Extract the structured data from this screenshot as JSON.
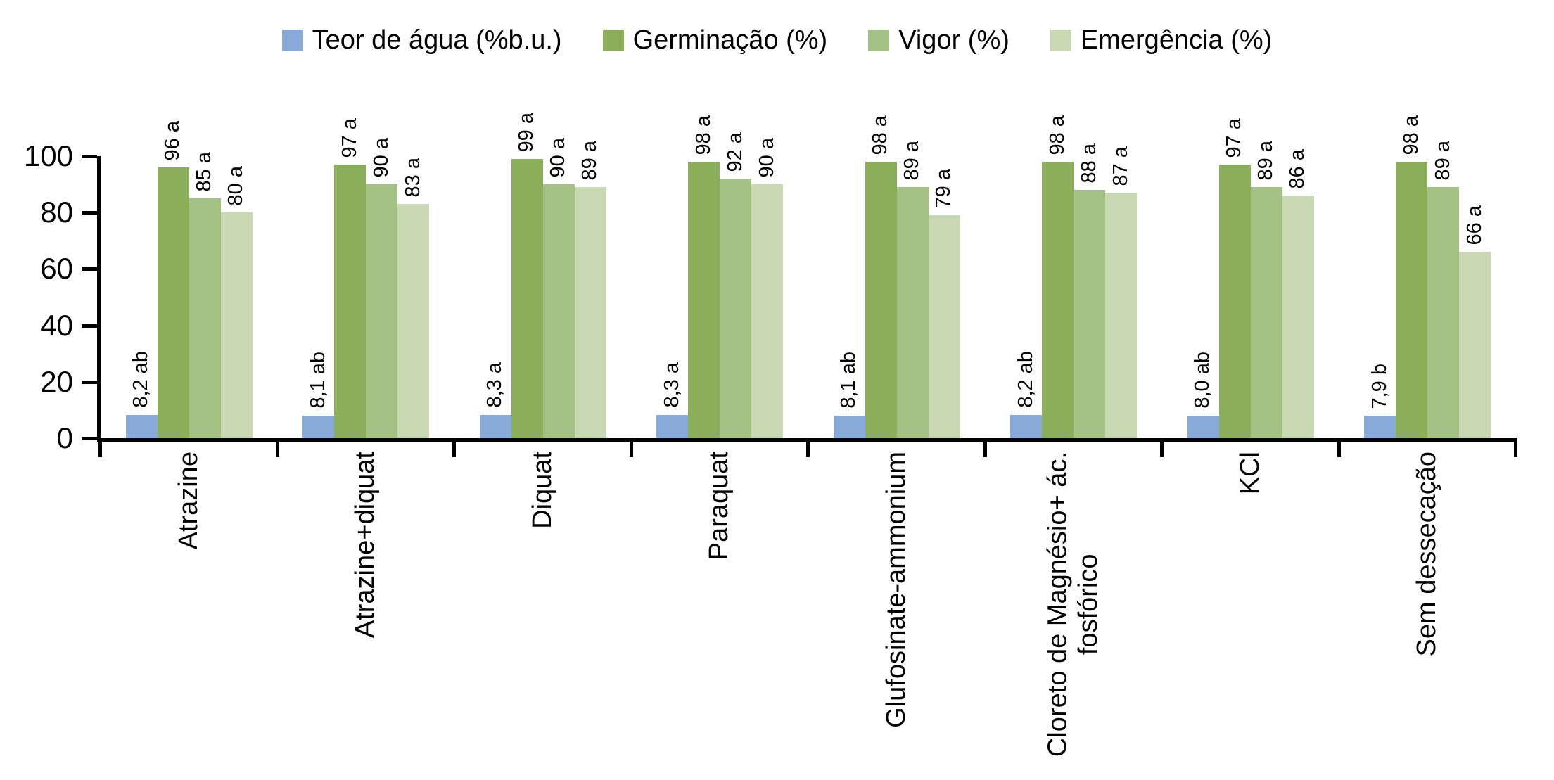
{
  "chart_data": {
    "type": "bar",
    "title": "",
    "xlabel": "",
    "ylabel": "",
    "ylim": [
      0,
      100
    ],
    "yticks": [
      0,
      20,
      40,
      60,
      80,
      100
    ],
    "grid": false,
    "legend_position": "top",
    "background_color": "#FFFFFF",
    "axis_color": "#000000",
    "categories": [
      "Atrazine",
      "Atrazine+diquat",
      "Diquat",
      "Paraquat",
      "Glufosinate-ammonium",
      "Cloreto de Magnésio+ ác. fosfórico",
      "KCl",
      "Sem dessecação"
    ],
    "categories_display": [
      "Atrazine",
      "Atrazine+diquat",
      "Diquat",
      "Paraquat",
      "Glufosinate-ammonium",
      "Cloreto de Magnésio+ ác.\nfosfórico",
      "KCl",
      "Sem dessecação"
    ],
    "series": [
      {
        "name": "Teor de água (%b.u.)",
        "color": "#87AAD8",
        "values": [
          8.2,
          8.1,
          8.3,
          8.3,
          8.1,
          8.2,
          8.0,
          7.9
        ],
        "labels": [
          "8,2 ab",
          "8,1 ab",
          "8,3 a",
          "8,3 a",
          "8,1 ab",
          "8,2 ab",
          "8,0 ab",
          "7,9 b"
        ]
      },
      {
        "name": "Germinação (%)",
        "color": "#8BAE5B",
        "values": [
          96,
          97,
          99,
          98,
          98,
          98,
          97,
          98
        ],
        "labels": [
          "96 a",
          "97 a",
          "99 a",
          "98 a",
          "98 a",
          "98 a",
          "97 a",
          "98 a"
        ]
      },
      {
        "name": "Vigor (%)",
        "color": "#A3C183",
        "values": [
          85,
          90,
          90,
          92,
          89,
          88,
          89,
          89
        ],
        "labels": [
          "85 a",
          "90 a",
          "90 a",
          "92 a",
          "89 a",
          "88 a",
          "89 a",
          "89 a"
        ]
      },
      {
        "name": "Emergência (%)",
        "color": "#C8D8B3",
        "values": [
          80,
          83,
          89,
          90,
          79,
          87,
          86,
          66
        ],
        "labels": [
          "80 a",
          "83 a",
          "89 a",
          "90 a",
          "79 a",
          "87 a",
          "86 a",
          "66 a"
        ]
      }
    ]
  }
}
